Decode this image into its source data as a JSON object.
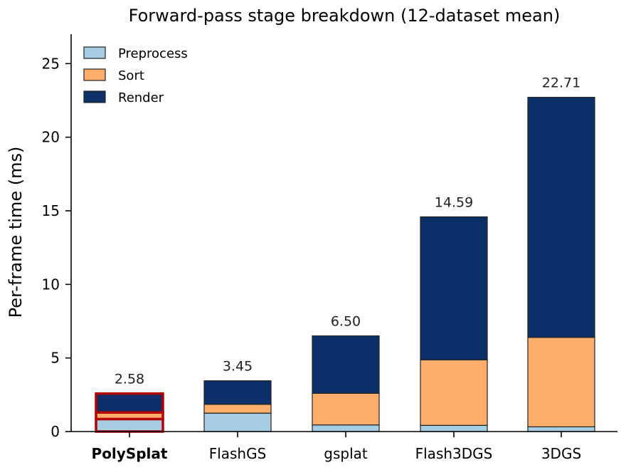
{
  "chart_data": {
    "type": "bar",
    "stacked": true,
    "title": "Forward-pass stage breakdown (12-dataset mean)",
    "xlabel": "",
    "ylabel": "Per-frame time (ms)",
    "ylim": [
      0,
      27
    ],
    "yticks": [
      0,
      5,
      10,
      15,
      20,
      25
    ],
    "categories": [
      "PolySplat",
      "FlashGS",
      "gsplat",
      "Flash3DGS",
      "3DGS"
    ],
    "highlight_category": "PolySplat",
    "series": [
      {
        "name": "Preprocess",
        "color": "#a6cde3",
        "values": [
          0.85,
          1.25,
          0.45,
          0.42,
          0.32
        ]
      },
      {
        "name": "Sort",
        "color": "#fdae6b",
        "values": [
          0.45,
          0.6,
          2.15,
          4.45,
          6.08
        ]
      },
      {
        "name": "Render",
        "color": "#0b3069",
        "values": [
          1.28,
          1.6,
          3.9,
          9.72,
          16.31
        ]
      }
    ],
    "totals": [
      "2.58",
      "3.45",
      "6.50",
      "14.59",
      "22.71"
    ],
    "legend_position": "top-left",
    "grid": false
  },
  "colors": {
    "highlight": "#b30000",
    "bar_edge": "#222222"
  }
}
